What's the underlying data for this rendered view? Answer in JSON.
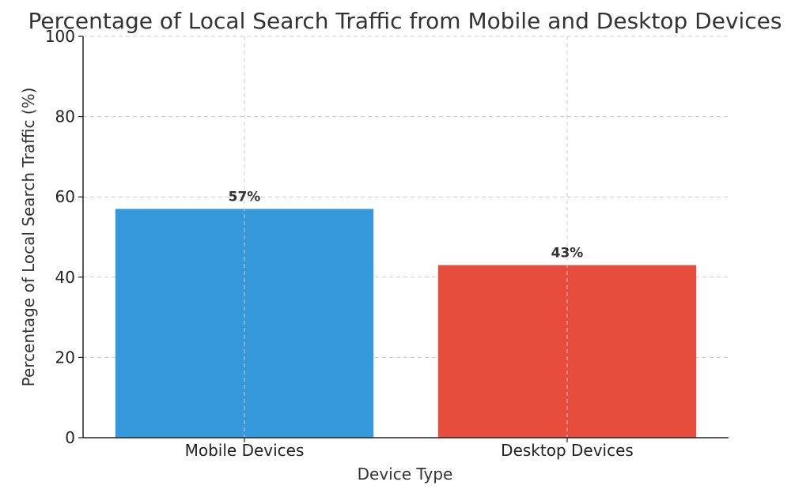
{
  "chart_data": {
    "type": "bar",
    "title": "Percentage of Local Search Traffic from Mobile and Desktop Devices",
    "xlabel": "Device Type",
    "ylabel": "Percentage of Local Search Traffic (%)",
    "categories": [
      "Mobile Devices",
      "Desktop Devices"
    ],
    "values": [
      57,
      43
    ],
    "data_labels": [
      "57%",
      "43%"
    ],
    "colors": [
      "#3498db",
      "#e74c3c"
    ],
    "ylim": [
      0,
      100
    ],
    "yticks": [
      0,
      20,
      40,
      60,
      80,
      100
    ],
    "grid": true
  }
}
